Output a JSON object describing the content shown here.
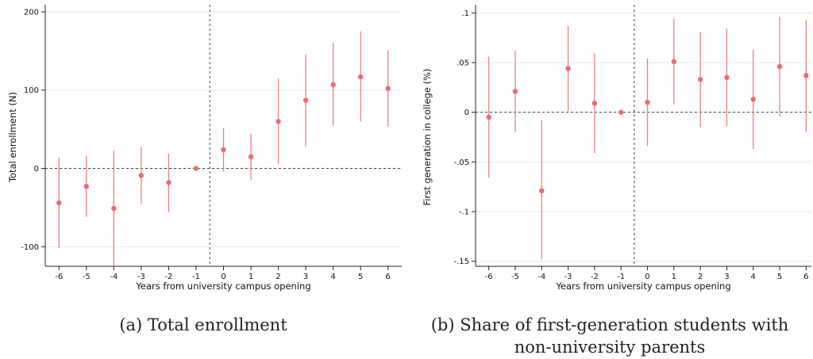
{
  "colors": {
    "marker": "#f06a6a",
    "ci_line": "#f07f7f",
    "grid": "#e8e8e8",
    "axis": "#222222",
    "reference": "#444444"
  },
  "captions": {
    "a": "(a) Total enrollment",
    "b_line1": "(b) Share of first-generation students with",
    "b_line2": "non-university parents"
  },
  "chart_data": [
    {
      "type": "scatter",
      "subtype": "event-study coefficient plot with confidence intervals",
      "xlabel": "Years from university campus opening",
      "ylabel": "Total enrollment (N)",
      "x": [
        -6,
        -5,
        -4,
        -3,
        -2,
        -1,
        0,
        1,
        2,
        3,
        4,
        5,
        6
      ],
      "y": [
        -44,
        -23,
        -51,
        -9,
        -18,
        0,
        24,
        15,
        60,
        87,
        107,
        117,
        102
      ],
      "ci_low": [
        -102,
        -62,
        -125,
        -45,
        -56,
        0,
        -4,
        -15,
        6,
        28,
        55,
        60,
        53
      ],
      "ci_high": [
        14,
        16,
        23,
        27,
        19,
        0,
        52,
        44,
        115,
        146,
        160,
        175,
        151
      ],
      "xlim": [
        -6.5,
        6.5
      ],
      "ylim": [
        -125,
        205
      ],
      "xticks": [
        "-6",
        "-5",
        "-4",
        "-3",
        "-2",
        "-1",
        "0",
        "1",
        "2",
        "3",
        "4",
        "5",
        "6"
      ],
      "yticks": [
        -100,
        0,
        100,
        200
      ],
      "ytick_labels": [
        "-100",
        "0",
        "100",
        "200"
      ],
      "hline": 0,
      "vline": -0.5,
      "grid": true
    },
    {
      "type": "scatter",
      "subtype": "event-study coefficient plot with confidence intervals",
      "xlabel": "Years from university campus opening",
      "ylabel": "First generation in college (%)",
      "x": [
        -6,
        -5,
        -4,
        -3,
        -2,
        -1,
        0,
        1,
        2,
        3,
        4,
        5,
        6
      ],
      "y": [
        -0.005,
        0.021,
        -0.079,
        0.044,
        0.009,
        0,
        0.01,
        0.051,
        0.033,
        0.035,
        0.013,
        0.046,
        0.037
      ],
      "ci_low": [
        -0.066,
        -0.02,
        -0.148,
        0.001,
        -0.041,
        0,
        -0.034,
        0.008,
        -0.015,
        -0.014,
        -0.037,
        -0.004,
        -0.02
      ],
      "ci_high": [
        0.056,
        0.062,
        -0.008,
        0.087,
        0.059,
        0,
        0.054,
        0.094,
        0.081,
        0.084,
        0.063,
        0.096,
        0.093
      ],
      "xlim": [
        -6.5,
        6.2
      ],
      "ylim": [
        -0.155,
        0.105
      ],
      "xticks": [
        "-6",
        "-5",
        "-4",
        "-3",
        "-2",
        "-1",
        "0",
        "1",
        "2",
        "3",
        "4",
        "5",
        "6"
      ],
      "yticks": [
        -0.15,
        -0.1,
        -0.05,
        0,
        0.05,
        0.1
      ],
      "ytick_labels": [
        "-.15",
        "-.1",
        "-.05",
        "0",
        ".05",
        ".1"
      ],
      "hline": 0,
      "vline": -0.5,
      "grid": true
    }
  ]
}
